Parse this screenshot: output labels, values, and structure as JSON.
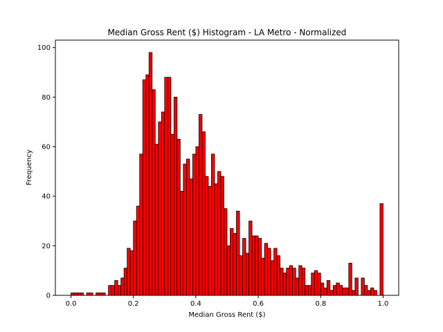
{
  "chart_data": {
    "type": "bar",
    "title": "Median Gross Rent ($) Histogram - LA Metro - Normalized",
    "xlabel": "Median Gross Rent ($)",
    "ylabel": "Frequency",
    "xlim": [
      -0.05,
      1.05
    ],
    "ylim": [
      0,
      103
    ],
    "xticks": [
      0.0,
      0.2,
      0.4,
      0.6,
      0.8,
      1.0
    ],
    "xtick_labels": [
      "0.0",
      "0.2",
      "0.4",
      "0.6",
      "0.8",
      "1.0"
    ],
    "yticks": [
      0,
      20,
      40,
      60,
      80,
      100
    ],
    "ytick_labels": [
      "0",
      "20",
      "40",
      "60",
      "80",
      "100"
    ],
    "grid": false,
    "bar_color": "#ff0000",
    "edge_color": "#000000",
    "bin_range": [
      0,
      1
    ],
    "bins": 100,
    "values": [
      1,
      1,
      1,
      1,
      0,
      1,
      1,
      0,
      1,
      1,
      1,
      0,
      4,
      4,
      6,
      4,
      7,
      11,
      19,
      18,
      30,
      36,
      57,
      87,
      89,
      98,
      83,
      61,
      70,
      74,
      88,
      88,
      65,
      80,
      63,
      42,
      53,
      55,
      47,
      57,
      60,
      73,
      66,
      48,
      44,
      57,
      45,
      50,
      48,
      35,
      20,
      27,
      25,
      34,
      16,
      23,
      17,
      30,
      24,
      24,
      23,
      15,
      21,
      19,
      14,
      19,
      16,
      11,
      9,
      11,
      12,
      11,
      7,
      12,
      11,
      4,
      4,
      9,
      10,
      9,
      5,
      3,
      6,
      2,
      4,
      5,
      4,
      3,
      3,
      13,
      2,
      7,
      0,
      7,
      4,
      2,
      3,
      2,
      0,
      37
    ]
  }
}
